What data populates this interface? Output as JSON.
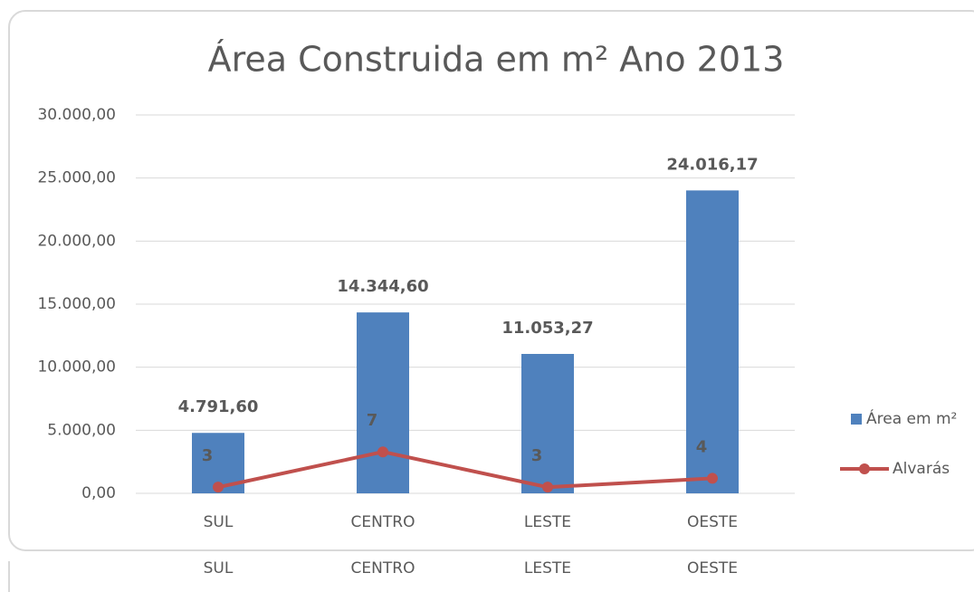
{
  "chart_data": [
    {
      "type": "bar",
      "title": "Área Construida em m² Ano 2013",
      "categories": [
        "SUL",
        "CENTRO",
        "LESTE",
        "OESTE"
      ],
      "series": [
        {
          "name": "Área em m²",
          "type": "bar",
          "color": "#4f81bd",
          "values": [
            4791.6,
            14344.6,
            11053.27,
            24016.17
          ],
          "value_labels": [
            "4.791,60",
            "14.344,60",
            "11.053,27",
            "24.016,17"
          ]
        },
        {
          "name": "Alvarás",
          "type": "line",
          "axis": "y2",
          "color": "#c0504d",
          "values": [
            3,
            7,
            3,
            4
          ]
        }
      ],
      "ylim": [
        0,
        30000
      ],
      "yticks": [
        {
          "value": 0,
          "label": "0,00"
        },
        {
          "value": 5000,
          "label": "5.000,00"
        },
        {
          "value": 10000,
          "label": "10.000,00"
        },
        {
          "value": 15000,
          "label": "15.000,00"
        },
        {
          "value": 20000,
          "label": "20.000,00"
        },
        {
          "value": 25000,
          "label": "25.000,00"
        },
        {
          "value": 30000,
          "label": "30.000,00"
        }
      ],
      "y2lim": [
        2.3,
        45.2
      ],
      "grid": true,
      "legend": "right"
    },
    {
      "type": "bar",
      "categories": [
        "SUL",
        "CENTRO",
        "LESTE",
        "OESTE"
      ]
    }
  ]
}
